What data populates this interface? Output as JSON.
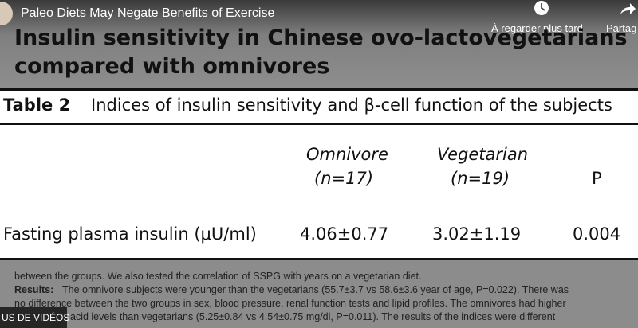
{
  "video_bar": {
    "title": "Paleo Diets May Negate Benefits of Exercise",
    "watch_later": "À regarder plus tard",
    "share": "Partag"
  },
  "slide": {
    "title": [
      "Insulin sensitivity in Chinese ovo-lactovegetarians",
      "compared with omnivores"
    ]
  },
  "table": {
    "label": "Table 2",
    "caption": "Indices of insulin sensitivity and β-cell function of the subjects",
    "headers": [
      [
        "Omnivore",
        "(n=17)"
      ],
      [
        "Vegetarian",
        "(n=19)"
      ],
      [
        "P"
      ]
    ],
    "rows": [
      [
        "Fasting plasma insulin (μU/ml)",
        "4.06±0.77",
        "3.02±1.19",
        "0.004"
      ]
    ]
  },
  "paper": {
    "lines": [
      "between the groups. We also tested the correlation of SSPG with years on a vegetarian diet.",
      "The omnivore subjects were younger than the vegetarians (55.7±3.7 vs 58.6±3.6 year of age, P=0.022). There was",
      "no difference between the two groups in sex, blood pressure, renal function tests and lipid profiles. The omnivores had higher",
      "acid levels than vegetarians (5.25±0.84 vs 4.54±0.75 mg/dl, P=0.011). The results of the indices were different"
    ],
    "results_label": "Results:"
  },
  "more_videos": "US DE VIDÉOS"
}
